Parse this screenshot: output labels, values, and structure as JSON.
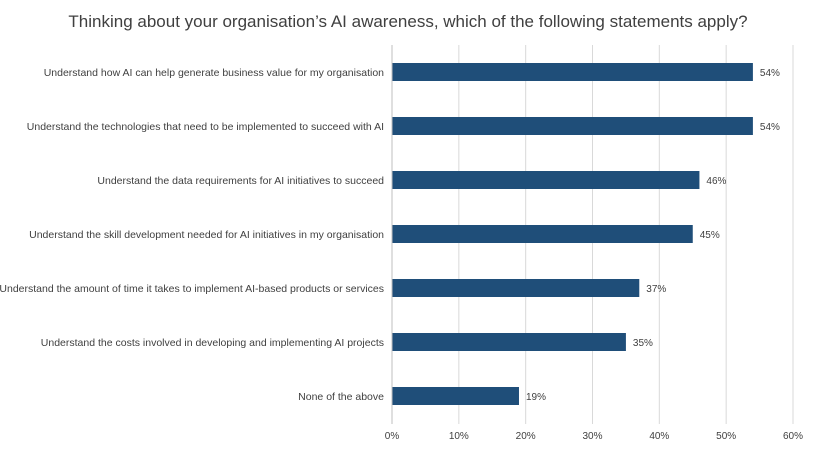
{
  "chart_data": {
    "type": "bar",
    "orientation": "horizontal",
    "title": "Thinking about your organisation’s AI awareness, which of the following statements apply?",
    "categories": [
      "Understand how AI can help generate business value for my organisation",
      "Understand the technologies that need to be implemented to succeed with AI",
      "Understand the data requirements for AI initiatives to succeed",
      "Understand the skill development needed for AI initiatives in my organisation",
      "Understand the amount of time it takes to implement AI-based products or services",
      "Understand the costs involved in developing and implementing AI projects",
      "None of the above"
    ],
    "values": [
      54,
      54,
      46,
      45,
      37,
      35,
      19
    ],
    "value_labels": [
      "54%",
      "54%",
      "46%",
      "45%",
      "37%",
      "35%",
      "19%"
    ],
    "xlim": [
      0,
      60
    ],
    "xticks": [
      0,
      10,
      20,
      30,
      40,
      50,
      60
    ],
    "xtick_labels": [
      "0%",
      "10%",
      "20%",
      "30%",
      "40%",
      "50%",
      "60%"
    ],
    "grid": "vertical",
    "bar_color": "#1f4e79"
  }
}
